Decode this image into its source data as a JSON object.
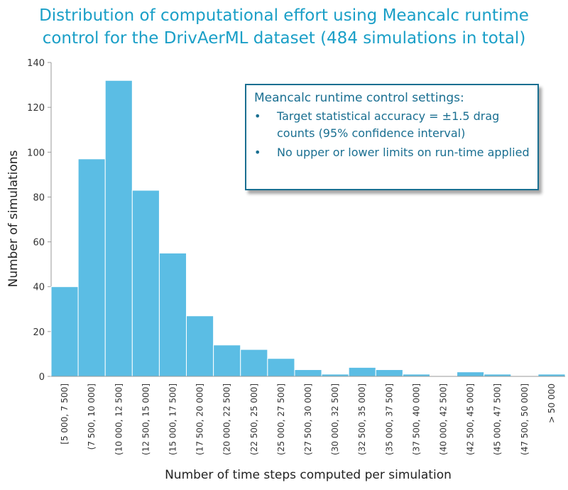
{
  "title_line1": "Distribution of computational effort using Meancalc runtime",
  "title_line2": "control for the DrivAerML dataset (484 simulations in total)",
  "infobox": {
    "heading": "Meancalc runtime control settings:",
    "bullet": "•",
    "items": [
      "Target statistical accuracy = ±1.5 drag counts (95% confidence interval)",
      "No upper or lower limits on run-time applied"
    ]
  },
  "colors": {
    "bar": "#5bbde4",
    "bar_edge": "#ffffff",
    "title": "#1a9fc7",
    "box": "#1a6f91"
  },
  "chart_data": {
    "type": "bar",
    "title": "Distribution of computational effort using Meancalc runtime control for the DrivAerML dataset (484 simulations in total)",
    "xlabel": "Number of time steps computed per simulation",
    "ylabel": "Number of simulations",
    "ylim": [
      0,
      140
    ],
    "yticks": [
      0,
      20,
      40,
      60,
      80,
      100,
      120,
      140
    ],
    "categories": [
      "[5 000, 7 500]",
      "(7 500, 10 000]",
      "(10 000, 12 500]",
      "(12 500, 15 000]",
      "(15 000, 17 500]",
      "(17 500, 20 000]",
      "(20 000, 22 500]",
      "(22 500, 25 000]",
      "(25 000, 27 500]",
      "(27 500, 30 000]",
      "(30 000, 32 500]",
      "(32 500, 35 000]",
      "(35 000, 37 500]",
      "(37 500, 40 000]",
      "(40 000, 42 500]",
      "(42 500, 45 000]",
      "(45 000, 47 500]",
      "(47 500, 50 000]",
      "> 50 000"
    ],
    "values": [
      40,
      97,
      132,
      83,
      55,
      27,
      14,
      12,
      8,
      3,
      1,
      4,
      3,
      1,
      0,
      2,
      1,
      0,
      1
    ]
  }
}
